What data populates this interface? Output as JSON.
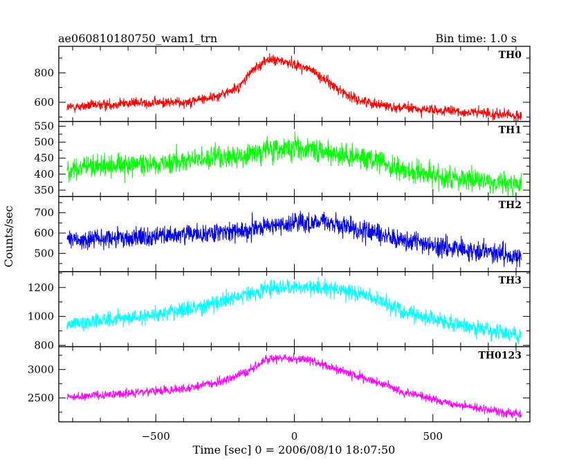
{
  "header": {
    "title": "ae060810180750_wam1_trn",
    "bin_time": "Bin time: 1.0 s"
  },
  "chart_data": {
    "type": "line",
    "title": "ae060810180750_wam1_trn",
    "subtitle": "Bin time: 1.0 s",
    "xlabel": "Time [sec] 0 = 2006/08/10 18:07:50",
    "ylabel": "Counts/sec",
    "xlim": [
      -850,
      850
    ],
    "data_range": [
      -820,
      820
    ],
    "x_ticks": [
      -500,
      0,
      500
    ],
    "x_tick_labels": [
      "−500",
      "0",
      "500"
    ],
    "grid": false,
    "panels": [
      {
        "name": "TH0",
        "color": "#ff0000",
        "ylim": [
          470,
          980
        ],
        "y_ticks": [
          600,
          800
        ],
        "y_tick_labels": [
          "600",
          "800"
        ],
        "profile": [
          [
            -820,
            565
          ],
          [
            -600,
            595
          ],
          [
            -400,
            600
          ],
          [
            -280,
            640
          ],
          [
            -200,
            700
          ],
          [
            -160,
            800
          ],
          [
            -100,
            890
          ],
          [
            -50,
            880
          ],
          [
            0,
            860
          ],
          [
            60,
            820
          ],
          [
            150,
            700
          ],
          [
            220,
            620
          ],
          [
            350,
            570
          ],
          [
            500,
            545
          ],
          [
            700,
            525
          ],
          [
            820,
            505
          ]
        ],
        "noise": 25
      },
      {
        "name": "TH1",
        "color": "#00ff00",
        "ylim": [
          330,
          565
        ],
        "y_ticks": [
          350,
          400,
          450,
          500,
          550
        ],
        "y_tick_labels": [
          "350",
          "400",
          "450",
          "500",
          "550"
        ],
        "profile": [
          [
            -820,
            415
          ],
          [
            -600,
            430
          ],
          [
            -400,
            440
          ],
          [
            -200,
            455
          ],
          [
            -100,
            475
          ],
          [
            0,
            480
          ],
          [
            100,
            470
          ],
          [
            200,
            460
          ],
          [
            300,
            440
          ],
          [
            400,
            410
          ],
          [
            550,
            395
          ],
          [
            700,
            375
          ],
          [
            820,
            365
          ]
        ],
        "noise": 25
      },
      {
        "name": "TH2",
        "color": "#0000e6",
        "ylim": [
          410,
          780
        ],
        "y_ticks": [
          500,
          600,
          700
        ],
        "y_tick_labels": [
          "500",
          "600",
          "700"
        ],
        "profile": [
          [
            -820,
            565
          ],
          [
            -600,
            575
          ],
          [
            -400,
            590
          ],
          [
            -200,
            610
          ],
          [
            -100,
            630
          ],
          [
            0,
            650
          ],
          [
            100,
            655
          ],
          [
            200,
            630
          ],
          [
            300,
            600
          ],
          [
            400,
            560
          ],
          [
            550,
            530
          ],
          [
            700,
            505
          ],
          [
            820,
            480
          ]
        ],
        "noise": 35
      },
      {
        "name": "TH3",
        "color": "#00ffff",
        "ylim": [
          790,
          1310
        ],
        "y_ticks": [
          800,
          1000,
          1200
        ],
        "y_tick_labels": [
          "800",
          "1000",
          "1200"
        ],
        "profile": [
          [
            -820,
            950
          ],
          [
            -600,
            990
          ],
          [
            -400,
            1040
          ],
          [
            -200,
            1140
          ],
          [
            -100,
            1190
          ],
          [
            0,
            1200
          ],
          [
            100,
            1200
          ],
          [
            200,
            1170
          ],
          [
            300,
            1120
          ],
          [
            400,
            1030
          ],
          [
            550,
            960
          ],
          [
            700,
            900
          ],
          [
            820,
            865
          ]
        ],
        "noise": 38
      },
      {
        "name": "TH0123",
        "color": "#ff00ff",
        "ylim": [
          2080,
          3400
        ],
        "y_ticks": [
          2500,
          3000
        ],
        "y_tick_labels": [
          "2500",
          "3000"
        ],
        "profile": [
          [
            -820,
            2500
          ],
          [
            -600,
            2580
          ],
          [
            -400,
            2650
          ],
          [
            -250,
            2800
          ],
          [
            -150,
            3000
          ],
          [
            -100,
            3180
          ],
          [
            -30,
            3200
          ],
          [
            0,
            3180
          ],
          [
            60,
            3170
          ],
          [
            150,
            3000
          ],
          [
            250,
            2850
          ],
          [
            400,
            2600
          ],
          [
            550,
            2420
          ],
          [
            700,
            2280
          ],
          [
            820,
            2200
          ]
        ],
        "noise": 55
      }
    ]
  }
}
